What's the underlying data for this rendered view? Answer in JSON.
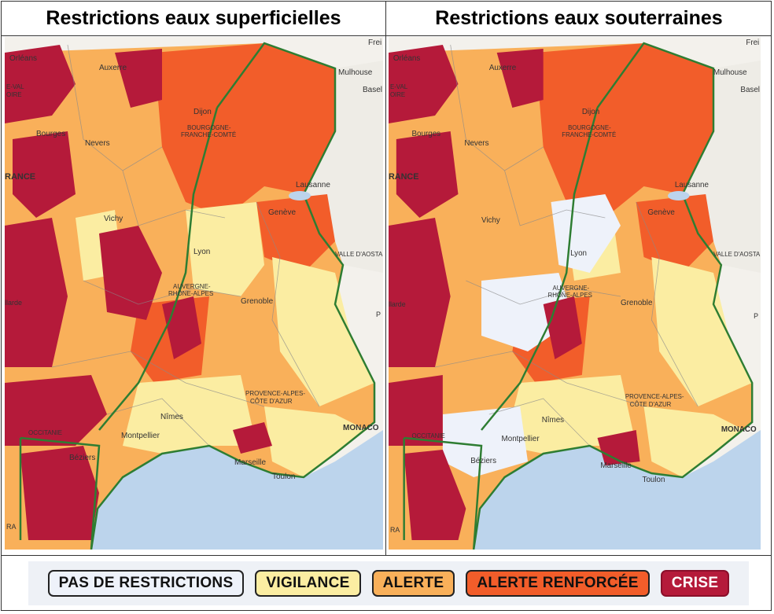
{
  "panels": [
    {
      "title": "Restrictions eaux superficielles"
    },
    {
      "title": "Restrictions eaux souterraines"
    }
  ],
  "places": {
    "orleans": "Orléans",
    "auxerre": "Auxerre",
    "mulhouse": "Mulhouse",
    "basel": "Basel",
    "freiburg": "Frei",
    "val_loire": "E-VAL",
    "loire": "OIRE",
    "dijon": "Dijon",
    "bourgogne": "BOURGOGNE-",
    "franche_comte": "FRANCHE-COMTÉ",
    "bourges": "Bourges",
    "nevers": "Nevers",
    "france": "RANCE",
    "lausanne": "Lausanne",
    "geneve": "Genève",
    "vichy": "Vichy",
    "lyon": "Lyon",
    "aoste": "VALLE D'AOSTA",
    "auvergne": "AUVERGNE-",
    "rhone_alpes": "RHÔNE-ALPES",
    "grenoble": "Grenoble",
    "limoges": "llarde",
    "paca1": "PROVENCE-ALPES-",
    "paca2": "CÔTE D'AZUR",
    "nimes": "Nîmes",
    "montpellier": "Montpellier",
    "occitanie": "OCCITANIE",
    "beziers": "Béziers",
    "marseille": "Marseille",
    "toulon": "Toulon",
    "monaco": "MONACO",
    "p_edge": "P",
    "ra": "RA"
  },
  "legend": [
    {
      "label": "PAS DE RESTRICTIONS",
      "color": "#eef2fa"
    },
    {
      "label": "VIGILANCE",
      "color": "#fbeda2"
    },
    {
      "label": "ALERTE",
      "color": "#f9b05a"
    },
    {
      "label": "ALERTE RENFORCÉE",
      "color": "#f25d2a"
    },
    {
      "label": "CRISE",
      "color": "#b51a3a"
    }
  ]
}
